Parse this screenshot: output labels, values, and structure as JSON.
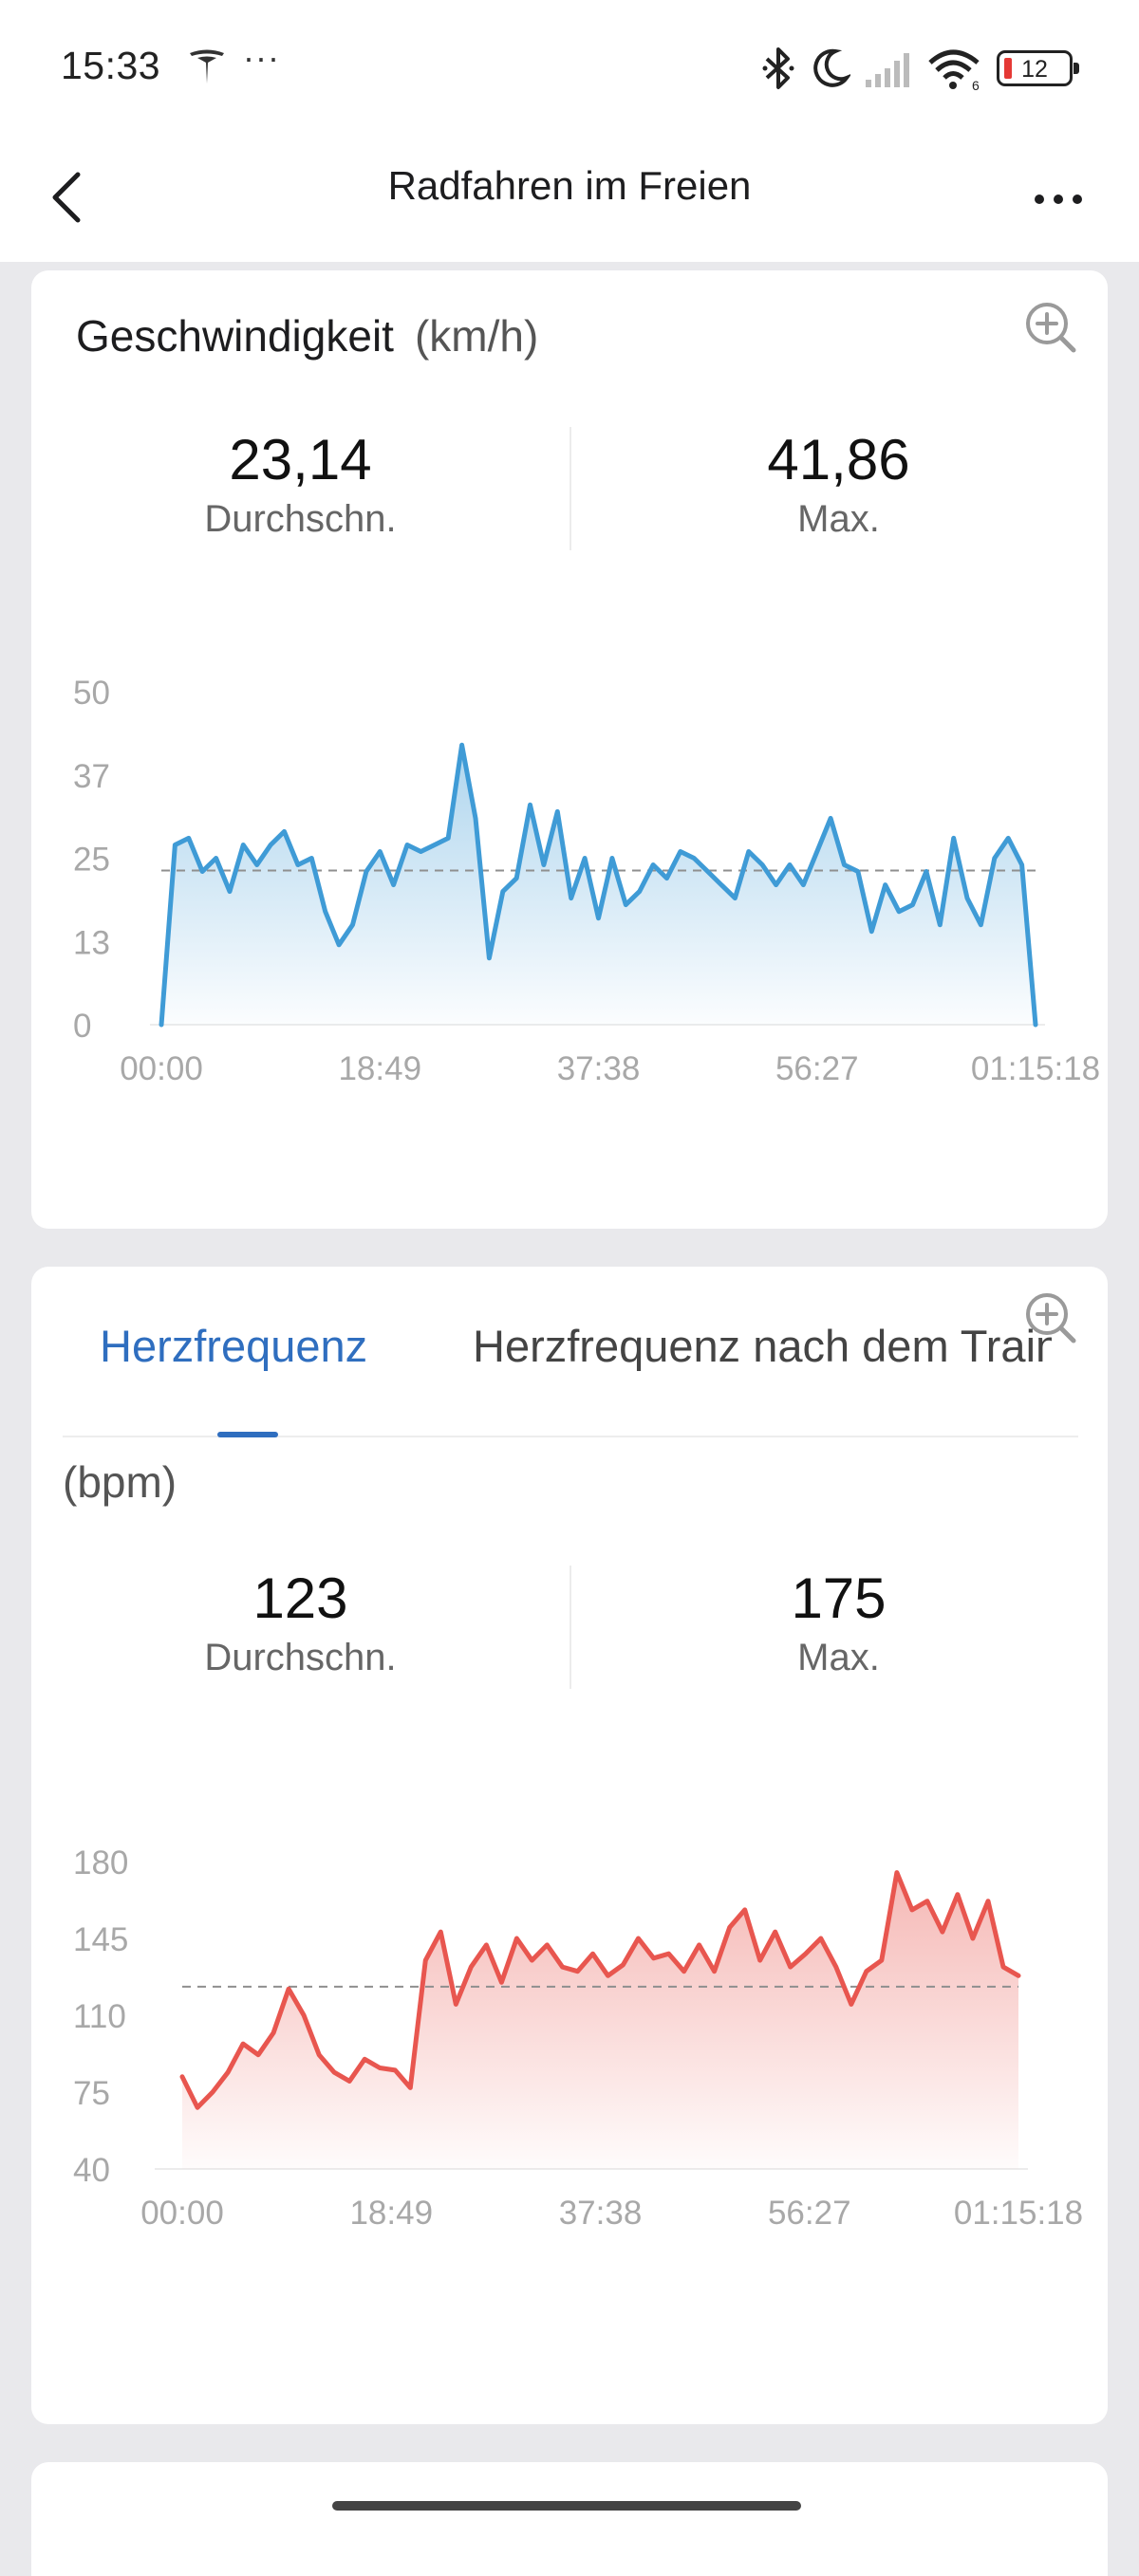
{
  "status_bar": {
    "time": "15:33",
    "dots": "···",
    "battery": "12",
    "icons": [
      "tesla-icon",
      "bluetooth-icon",
      "moon-icon",
      "signal-icon",
      "wifi-icon",
      "battery-icon"
    ]
  },
  "header": {
    "title": "Radfahren im Freien",
    "back_icon": "chevron-left-icon",
    "more_icon": "more-horizontal-icon"
  },
  "speed_card": {
    "title": "Geschwindigkeit",
    "unit": "(km/h)",
    "avg_value": "23,14",
    "avg_label": "Durchschn.",
    "max_value": "41,86",
    "max_label": "Max.",
    "zoom_icon": "zoom-in-icon"
  },
  "hr_card": {
    "tab_active": "Herzfrequenz",
    "tab_inactive": "Herzfrequenz nach dem Training",
    "unit": "(bpm)",
    "avg_value": "123",
    "avg_label": "Durchschn.",
    "max_value": "175",
    "max_label": "Max.",
    "zoom_icon": "zoom-in-icon"
  },
  "colors": {
    "speed_line": "#3f9bd6",
    "hr_line": "#e8564f",
    "accent": "#2f6ebf"
  },
  "chart_data": [
    {
      "type": "area",
      "series": [
        {
          "values": [
            0,
            27,
            28,
            23,
            25,
            20,
            27,
            24,
            27,
            29,
            24,
            25,
            17,
            12,
            15,
            23,
            26,
            21,
            27,
            26,
            27,
            28,
            42,
            31,
            10,
            20,
            22,
            33,
            24,
            32,
            19,
            25,
            16,
            25,
            18,
            20,
            24,
            22,
            26,
            25,
            23,
            21,
            19,
            26,
            24,
            21,
            24,
            21,
            26,
            31,
            24,
            23,
            14,
            21,
            17,
            18,
            23,
            15,
            28,
            19,
            15,
            25,
            28,
            24,
            0
          ]
        }
      ],
      "x_range": [
        0,
        75.3
      ],
      "avg_line": 23.14,
      "yticks": [
        "50",
        "37",
        "25",
        "13",
        "0"
      ],
      "xticks": [
        "00:00",
        "18:49",
        "37:38",
        "56:27",
        "01:15:18"
      ],
      "ylim": [
        0,
        50
      ]
    },
    {
      "type": "area",
      "series": [
        {
          "values": [
            82,
            68,
            75,
            84,
            97,
            92,
            102,
            122,
            110,
            92,
            84,
            80,
            90,
            86,
            85,
            77,
            135,
            148,
            115,
            132,
            142,
            125,
            145,
            135,
            142,
            132,
            130,
            138,
            128,
            133,
            145,
            136,
            138,
            130,
            142,
            130,
            150,
            158,
            135,
            148,
            132,
            138,
            145,
            132,
            115,
            130,
            135,
            175,
            158,
            162,
            148,
            165,
            145,
            162,
            132,
            128
          ]
        }
      ],
      "x_range": [
        0,
        75.3
      ],
      "avg_line": 123,
      "yticks": [
        "180",
        "145",
        "110",
        "75",
        "40"
      ],
      "xticks": [
        "00:00",
        "18:49",
        "37:38",
        "56:27",
        "01:15:18"
      ],
      "ylim": [
        40,
        180
      ]
    }
  ]
}
